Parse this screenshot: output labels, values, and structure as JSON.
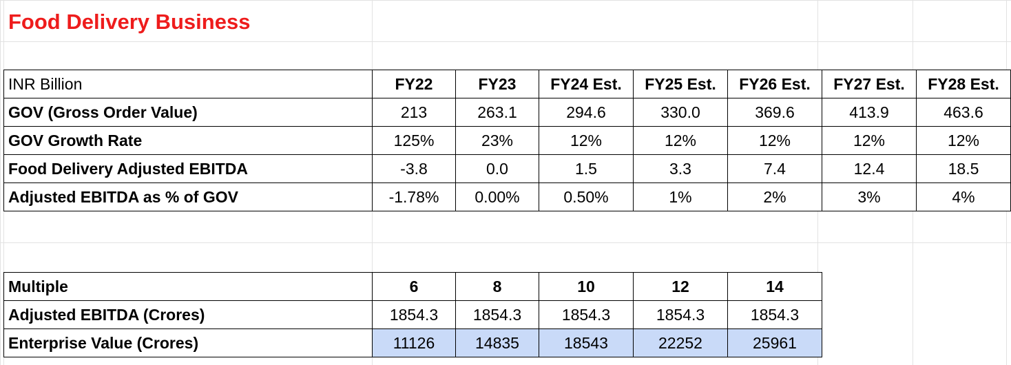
{
  "title": "Food Delivery Business",
  "table1": {
    "corner": "INR Billion",
    "headers": [
      "FY22",
      "FY23",
      "FY24 Est.",
      "FY25 Est.",
      "FY26 Est.",
      "FY27 Est.",
      "FY28 Est."
    ],
    "rows": [
      {
        "label": "GOV (Gross Order Value)",
        "values": [
          "213",
          "263.1",
          "294.6",
          "330.0",
          "369.6",
          "413.9",
          "463.6"
        ]
      },
      {
        "label": "GOV Growth Rate",
        "values": [
          "125%",
          "23%",
          "12%",
          "12%",
          "12%",
          "12%",
          "12%"
        ]
      },
      {
        "label": "Food Delivery Adjusted EBITDA",
        "values": [
          "-3.8",
          "0.0",
          "1.5",
          "3.3",
          "7.4",
          "12.4",
          "18.5"
        ]
      },
      {
        "label": "Adjusted EBITDA as % of GOV",
        "values": [
          "-1.78%",
          "0.00%",
          "0.50%",
          "1%",
          "2%",
          "3%",
          "4%"
        ]
      }
    ]
  },
  "table2": {
    "corner": "Multiple",
    "headers": [
      "6",
      "8",
      "10",
      "12",
      "14"
    ],
    "rows": [
      {
        "label": "Adjusted EBITDA (Crores)",
        "values": [
          "1854.3",
          "1854.3",
          "1854.3",
          "1854.3",
          "1854.3"
        ]
      },
      {
        "label": "Enterprise Value (Crores)",
        "values": [
          "11126",
          "14835",
          "18543",
          "22252",
          "25961"
        ]
      }
    ]
  },
  "colors": {
    "title": "#ee1c1c",
    "highlight": "#c9daf8",
    "gridline": "#e2e2e2"
  }
}
